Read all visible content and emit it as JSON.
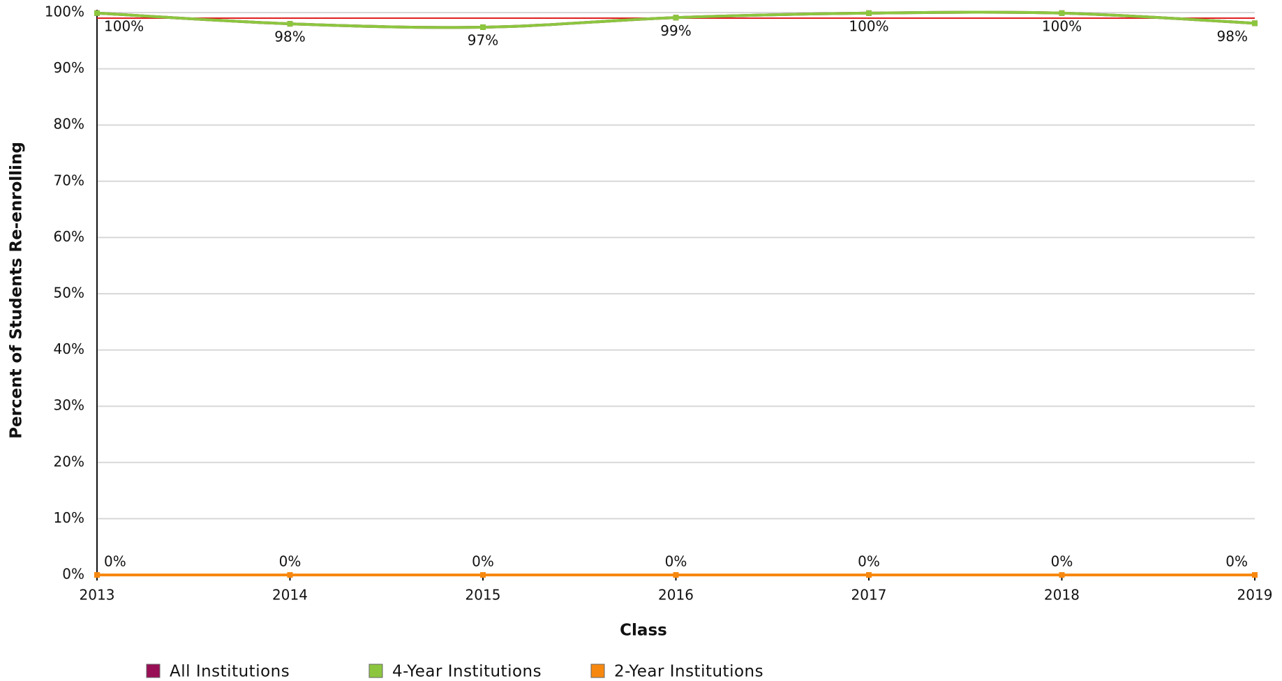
{
  "chart_data": {
    "type": "line",
    "x_label": "Class",
    "y_label": "Percent of Students Re-enrolling",
    "x": [
      2013,
      2014,
      2015,
      2016,
      2017,
      2018,
      2019
    ],
    "xlim": [
      2013,
      2019
    ],
    "xticks": [
      2013,
      2014,
      2015,
      2016,
      2017,
      2018,
      2019
    ],
    "ylim": [
      0,
      100
    ],
    "yticks": [
      {
        "value": 0,
        "label": "0%"
      },
      {
        "value": 10,
        "label": "10%"
      },
      {
        "value": 20,
        "label": "20%"
      },
      {
        "value": 30,
        "label": "30%"
      },
      {
        "value": 40,
        "label": "40%"
      },
      {
        "value": 50,
        "label": "50%"
      },
      {
        "value": 60,
        "label": "60%"
      },
      {
        "value": 70,
        "label": "70%"
      },
      {
        "value": 80,
        "label": "80%"
      },
      {
        "value": 90,
        "label": "90%"
      },
      {
        "value": 100,
        "label": "100%"
      }
    ],
    "grid": true,
    "reference_line": {
      "value": 99,
      "color": "#e02020"
    },
    "series": [
      {
        "name": "All Institutions",
        "color": "#990f55",
        "values": [
          99.9,
          98.0,
          97.4,
          99.1,
          99.9,
          99.9,
          98.1
        ]
      },
      {
        "name": "4-Year Institutions",
        "color": "#8cc63f",
        "values": [
          99.9,
          98.0,
          97.4,
          99.1,
          99.9,
          99.9,
          98.1
        ],
        "value_labels": [
          "100%",
          "98%",
          "97%",
          "99%",
          "100%",
          "100%",
          "98%"
        ]
      },
      {
        "name": "2-Year Institutions",
        "color": "#f7880f",
        "values": [
          0,
          0,
          0,
          0,
          0,
          0,
          0
        ],
        "value_labels": [
          "0%",
          "0%",
          "0%",
          "0%",
          "0%",
          "0%",
          "0%"
        ]
      }
    ]
  }
}
